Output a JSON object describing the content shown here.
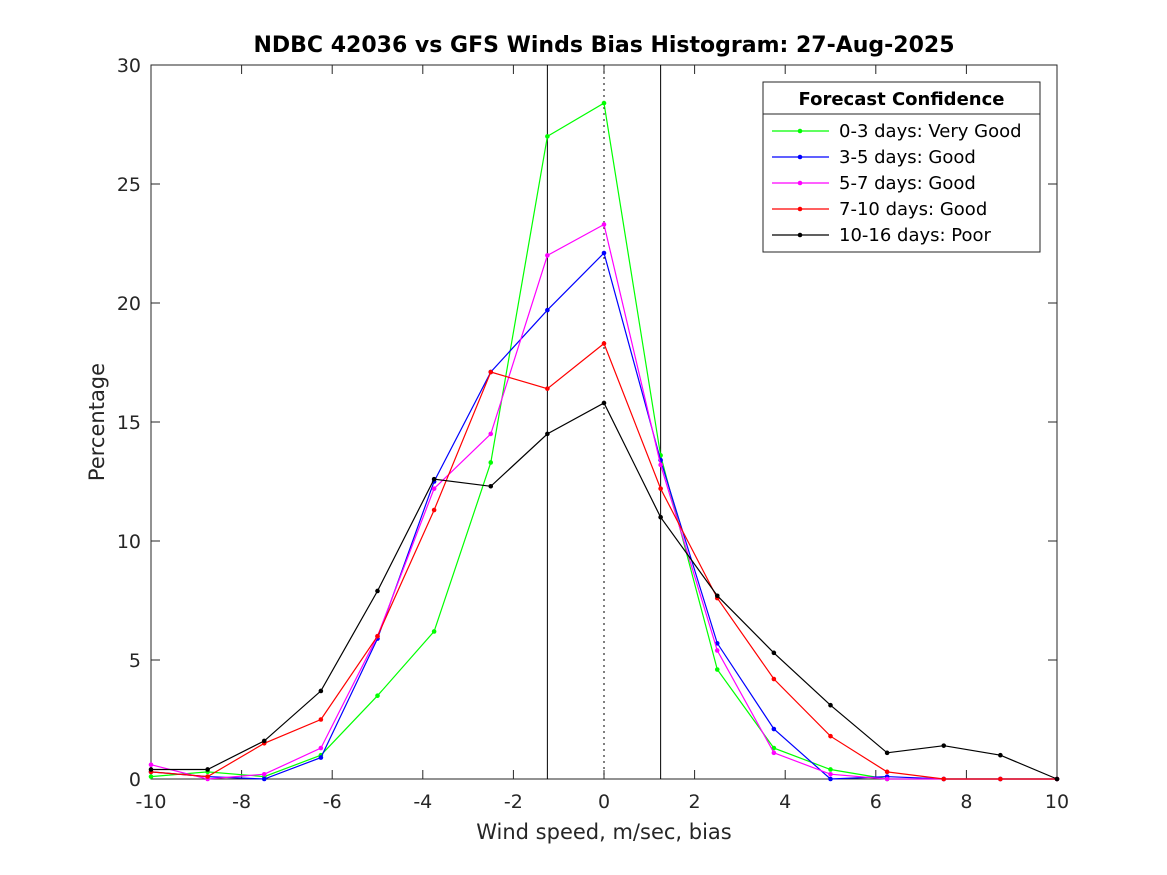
{
  "chart_data": {
    "type": "line",
    "title": "NDBC 42036 vs GFS Winds Bias Histogram: 27-Aug-2025",
    "xlabel": "Wind speed, m/sec, bias",
    "ylabel": "Percentage",
    "xlim": [
      -10,
      10
    ],
    "ylim": [
      0,
      30
    ],
    "xticks": [
      -10,
      -8,
      -6,
      -4,
      -2,
      0,
      2,
      4,
      6,
      8,
      10
    ],
    "yticks": [
      0,
      5,
      10,
      15,
      20,
      25,
      30
    ],
    "grid": false,
    "vertical_lines": [
      {
        "x": -1.25,
        "style": "solid"
      },
      {
        "x": 0,
        "style": "dotted"
      },
      {
        "x": 1.25,
        "style": "solid"
      }
    ],
    "legend": {
      "title": "Forecast Confidence",
      "location": "top-right"
    },
    "x": [
      -10,
      -8.75,
      -7.5,
      -6.25,
      -5,
      -3.75,
      -2.5,
      -1.25,
      0,
      1.25,
      2.5,
      3.75,
      5,
      6.25,
      7.5,
      8.75,
      10
    ],
    "series": [
      {
        "name": "0-3 days: Very Good",
        "color": "#00ff00",
        "values": [
          0.1,
          0.3,
          0.1,
          1.0,
          3.5,
          6.2,
          13.3,
          27.0,
          28.4,
          13.6,
          4.6,
          1.3,
          0.4,
          0.0,
          0.0,
          0.0,
          0.0
        ]
      },
      {
        "name": "3-5 days: Good",
        "color": "#0000ff",
        "values": [
          0.3,
          0.1,
          0.0,
          0.9,
          5.9,
          12.5,
          17.1,
          19.7,
          22.1,
          13.4,
          5.7,
          2.1,
          0.0,
          0.1,
          0.0,
          0.0,
          0.0
        ]
      },
      {
        "name": "5-7 days: Good",
        "color": "#ff00ff",
        "values": [
          0.6,
          0.0,
          0.2,
          1.3,
          6.0,
          12.2,
          14.5,
          22.0,
          23.3,
          13.2,
          5.4,
          1.1,
          0.2,
          0.0,
          0.0,
          0.0,
          0.0
        ]
      },
      {
        "name": "7-10 days: Good",
        "color": "#ff0000",
        "values": [
          0.3,
          0.1,
          1.5,
          2.5,
          6.0,
          11.3,
          17.1,
          16.4,
          18.3,
          12.2,
          7.6,
          4.2,
          1.8,
          0.3,
          0.0,
          0.0,
          0.0
        ]
      },
      {
        "name": "10-16 days: Poor",
        "color": "#000000",
        "values": [
          0.4,
          0.4,
          1.6,
          3.7,
          7.9,
          12.6,
          12.3,
          14.5,
          15.8,
          11.0,
          7.7,
          5.3,
          3.1,
          1.1,
          1.4,
          1.0,
          0.0
        ]
      }
    ]
  }
}
